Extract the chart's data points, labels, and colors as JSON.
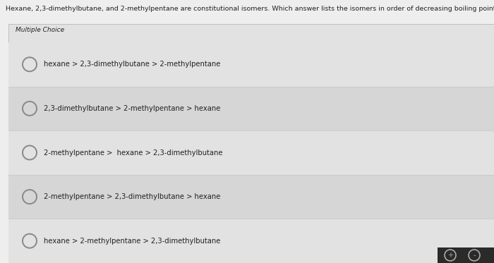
{
  "header_text": "Hexane, 2,3-dimethylbutane, and 2-methylpentane are constitutional isomers. Which answer lists the isomers in order of decreasing boiling point?",
  "section_label": "Multiple Choice",
  "choices": [
    "hexane > 2,3-dimethylbutane > 2-methylpentane",
    "2,3-dimethylbutane > 2-methylpentane > hexane",
    "2-methylpentane >  hexane > 2,3-dimethylbutane",
    "2-methylpentane > 2,3-dimethylbutane > hexane",
    "hexane > 2-methylpentane > 2,3-dimethylbutane"
  ],
  "bg_top": "#eeeeee",
  "bg_panel": "#e2e2e2",
  "bg_row_odd": "#e2e2e2",
  "bg_row_even": "#d6d6d6",
  "circle_edge_color": "#888888",
  "header_fontsize": 6.8,
  "label_fontsize": 6.5,
  "choice_fontsize": 7.2,
  "text_color": "#222222",
  "icon_bg": "#2a2a2a",
  "icon_symbol_color": "#aaaaaa"
}
